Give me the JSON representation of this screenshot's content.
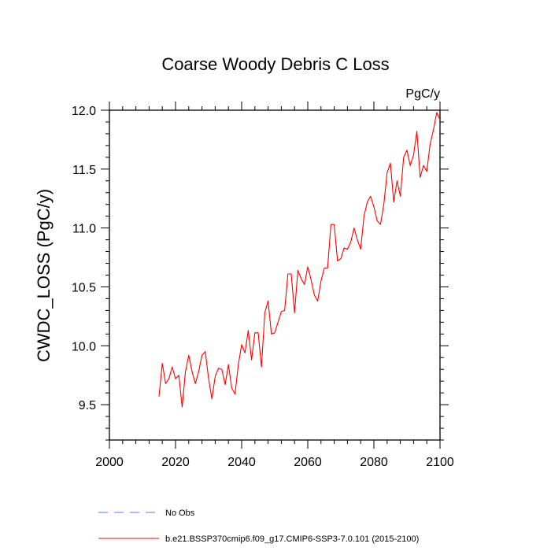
{
  "chart_data": {
    "type": "line",
    "title": "Coarse Woody Debris C Loss",
    "units_label": "PgC/y",
    "ylabel": "CWDC_LOSS  (PgC/y)",
    "xlabel": "",
    "xlim": [
      2000,
      2100
    ],
    "ylim": [
      9.2,
      12.0
    ],
    "xticks": [
      2000,
      2020,
      2040,
      2060,
      2080,
      2100
    ],
    "yticks": [
      9.5,
      10.0,
      10.5,
      11.0,
      11.5,
      12.0
    ],
    "xtick_labels": [
      "2000",
      "2020",
      "2040",
      "2060",
      "2080",
      "2100"
    ],
    "ytick_labels": [
      "9.5",
      "10.0",
      "10.5",
      "11.0",
      "11.5",
      "12.0"
    ],
    "legend": [
      {
        "label": "No Obs",
        "color": "#6b6bff",
        "style": "dashed"
      },
      {
        "label": "b.e21.BSSP370cmip6.f09_g17.CMIP6-SSP3-7.0.101 (2015-2100)",
        "color": "#ff0000",
        "style": "solid"
      }
    ],
    "series": [
      {
        "name": "b.e21.BSSP370cmip6.f09_g17.CMIP6-SSP3-7.0.101 (2015-2100)",
        "color": "#ff0000",
        "x": [
          2015,
          2016,
          2017,
          2018,
          2019,
          2020,
          2021,
          2022,
          2023,
          2024,
          2025,
          2026,
          2027,
          2028,
          2029,
          2030,
          2031,
          2032,
          2033,
          2034,
          2035,
          2036,
          2037,
          2038,
          2039,
          2040,
          2041,
          2042,
          2043,
          2044,
          2045,
          2046,
          2047,
          2048,
          2049,
          2050,
          2051,
          2052,
          2053,
          2054,
          2055,
          2056,
          2057,
          2058,
          2059,
          2060,
          2061,
          2062,
          2063,
          2064,
          2065,
          2066,
          2067,
          2068,
          2069,
          2070,
          2071,
          2072,
          2073,
          2074,
          2075,
          2076,
          2077,
          2078,
          2079,
          2080,
          2081,
          2082,
          2083,
          2084,
          2085,
          2086,
          2087,
          2088,
          2089,
          2090,
          2091,
          2092,
          2093,
          2094,
          2095,
          2096,
          2097,
          2098,
          2099,
          2100
        ],
        "values": [
          9.57,
          9.85,
          9.68,
          9.72,
          9.82,
          9.72,
          9.75,
          9.48,
          9.78,
          9.92,
          9.78,
          9.68,
          9.78,
          9.92,
          9.95,
          9.72,
          9.55,
          9.74,
          9.81,
          9.8,
          9.67,
          9.84,
          9.64,
          9.59,
          9.84,
          10.01,
          9.94,
          10.13,
          9.88,
          10.11,
          10.11,
          9.82,
          10.28,
          10.38,
          10.1,
          10.11,
          10.2,
          10.29,
          10.3,
          10.61,
          10.61,
          10.28,
          10.64,
          10.57,
          10.52,
          10.67,
          10.56,
          10.43,
          10.38,
          10.55,
          10.66,
          10.66,
          11.03,
          11.03,
          10.72,
          10.74,
          10.83,
          10.82,
          10.88,
          11.0,
          10.9,
          10.82,
          11.1,
          11.22,
          11.27,
          11.18,
          11.06,
          11.03,
          11.2,
          11.47,
          11.55,
          11.22,
          11.4,
          11.27,
          11.6,
          11.66,
          11.53,
          11.62,
          11.82,
          11.43,
          11.53,
          11.48,
          11.71,
          11.83,
          11.98,
          11.92
        ]
      }
    ]
  }
}
